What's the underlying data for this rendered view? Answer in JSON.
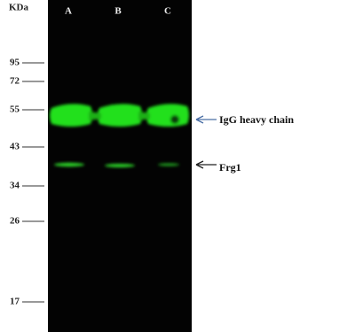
{
  "unit_label": "KDa",
  "lanes": [
    "A",
    "B",
    "C"
  ],
  "markers": [
    "95",
    "72",
    "55",
    "43",
    "34",
    "26",
    "17"
  ],
  "annotations": [
    "IgG heavy chain",
    "Frg1"
  ]
}
